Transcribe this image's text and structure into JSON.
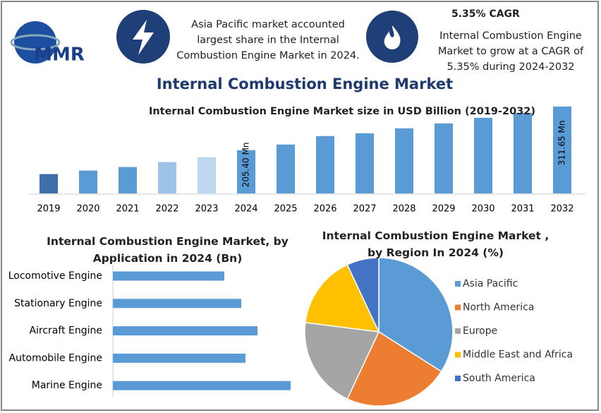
{
  "header": {
    "headline": "Asia Pacific market accounted largest share in the Internal Combustion Engine Market in 2024.",
    "cagr_title": "5.35% CAGR",
    "cagr_text": "Internal Combustion Engine Market to grow at a CAGR of 5.35% during 2024-2032",
    "logo": "MMR",
    "title": "Internal Combustion Engine Market"
  },
  "chart_data": [
    {
      "type": "bar",
      "title": "Internal Combustion Engine Market size in USD Billion (2019-2032)",
      "categories": [
        "2019",
        "2020",
        "2021",
        "2022",
        "2023",
        "2024",
        "2025",
        "2026",
        "2027",
        "2028",
        "2029",
        "2030",
        "2031",
        "2032"
      ],
      "values": [
        147.1,
        155.7,
        164.3,
        176.3,
        188.3,
        205.4,
        219.1,
        239.7,
        246.5,
        258.5,
        270.5,
        284.2,
        296.2,
        311.65
      ],
      "value_labels": [
        null,
        null,
        null,
        null,
        null,
        "205.40 Mn",
        null,
        null,
        null,
        null,
        null,
        null,
        null,
        "311.65 Mn"
      ],
      "colors": [
        "#3f6fa8",
        "#5b9bd5",
        "#5b9bd5",
        "#9dc3e6",
        "#bdd7ee",
        "#5b9bd5",
        "#5b9bd5",
        "#5b9bd5",
        "#5b9bd5",
        "#5b9bd5",
        "#5b9bd5",
        "#5b9bd5",
        "#5b9bd5",
        "#5b9bd5"
      ],
      "ylim": [
        100,
        320
      ]
    },
    {
      "type": "hbar",
      "title": "Internal Combustion Engine Market, by Application in 2024 (Bn)",
      "categories": [
        "Locomotive Engine",
        "Stationary Engine",
        "Aircraft Engine",
        "Automobile Engine",
        "Marine Engine"
      ],
      "values": [
        15.8,
        18.2,
        20.5,
        18.8,
        25.2
      ],
      "color": "#5b9bd5",
      "xlim": [
        0,
        30
      ]
    },
    {
      "type": "pie",
      "title": "Internal Combustion Engine Market , by Region In 2024 (%)",
      "categories": [
        "Asia Pacific",
        "North America",
        "Europe",
        "Middle East and Africa",
        "South America"
      ],
      "values": [
        34,
        23,
        20,
        16,
        7
      ],
      "colors": [
        "#5b9bd5",
        "#ed7d31",
        "#a5a5a5",
        "#ffc000",
        "#4472c4"
      ],
      "legend": "right"
    }
  ]
}
